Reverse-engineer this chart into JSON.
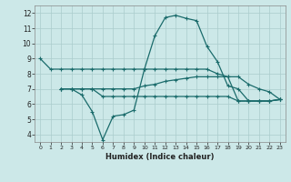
{
  "xlabel": "Humidex (Indice chaleur)",
  "bg_color": "#cce8e8",
  "line_color": "#1a6b6b",
  "grid_color": "#aacccc",
  "xlim": [
    -0.5,
    23.5
  ],
  "ylim": [
    3.5,
    12.5
  ],
  "xticks": [
    0,
    1,
    2,
    3,
    4,
    5,
    6,
    7,
    8,
    9,
    10,
    11,
    12,
    13,
    14,
    15,
    16,
    17,
    18,
    19,
    20,
    21,
    22,
    23
  ],
  "yticks": [
    4,
    5,
    6,
    7,
    8,
    9,
    10,
    11,
    12
  ],
  "line1_x": [
    0,
    1,
    2,
    3,
    4,
    5,
    6,
    7,
    8,
    9,
    10,
    11,
    12,
    13,
    14,
    15,
    16,
    17,
    18,
    19,
    20,
    21,
    22,
    23
  ],
  "line1_y": [
    9.0,
    8.3,
    8.3,
    8.3,
    8.3,
    8.3,
    8.3,
    8.3,
    8.3,
    8.3,
    8.3,
    8.3,
    8.3,
    8.3,
    8.3,
    8.3,
    8.3,
    8.0,
    7.8,
    7.8,
    7.3,
    7.0,
    6.8,
    6.3
  ],
  "line2_x": [
    2,
    3,
    4,
    5,
    6,
    7,
    8,
    9,
    10,
    11,
    12,
    13,
    14,
    15,
    16,
    17,
    18,
    19,
    20,
    21,
    22,
    23
  ],
  "line2_y": [
    7.0,
    7.0,
    6.6,
    5.5,
    3.65,
    5.2,
    5.3,
    5.6,
    8.3,
    10.5,
    11.7,
    11.85,
    11.65,
    11.5,
    9.8,
    8.8,
    7.2,
    7.0,
    6.2,
    6.2,
    6.2,
    6.3
  ],
  "line3_x": [
    2,
    3,
    4,
    5,
    6,
    7,
    8,
    9,
    10,
    11,
    12,
    13,
    14,
    15,
    16,
    17,
    18,
    19,
    20,
    21,
    22,
    23
  ],
  "line3_y": [
    7.0,
    7.0,
    7.0,
    7.0,
    7.0,
    7.0,
    7.0,
    7.0,
    7.2,
    7.3,
    7.5,
    7.6,
    7.7,
    7.8,
    7.8,
    7.8,
    7.8,
    6.2,
    6.2,
    6.2,
    6.2,
    6.3
  ],
  "line4_x": [
    2,
    3,
    4,
    5,
    6,
    7,
    8,
    9,
    10,
    11,
    12,
    13,
    14,
    15,
    16,
    17,
    18,
    19,
    20,
    21,
    22,
    23
  ],
  "line4_y": [
    7.0,
    7.0,
    7.0,
    7.0,
    6.5,
    6.5,
    6.5,
    6.5,
    6.5,
    6.5,
    6.5,
    6.5,
    6.5,
    6.5,
    6.5,
    6.5,
    6.5,
    6.2,
    6.2,
    6.2,
    6.2,
    6.3
  ]
}
